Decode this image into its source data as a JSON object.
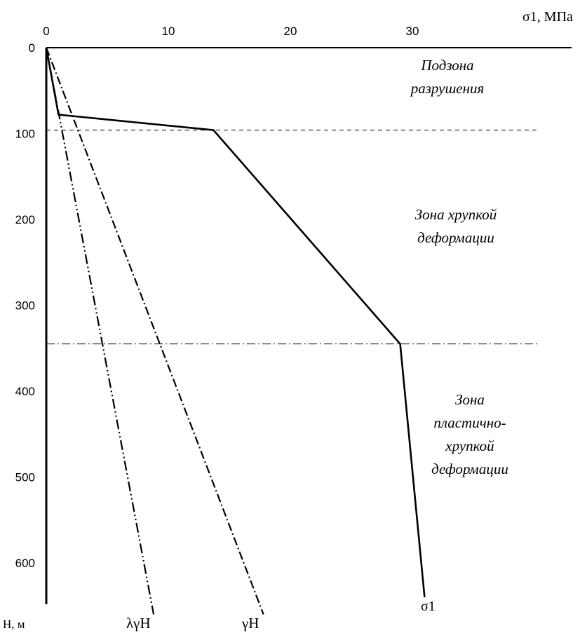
{
  "chart_data": {
    "type": "line",
    "title": "",
    "xlabel": "σ1, МПа",
    "ylabel": "Н, м",
    "x_ticks": [
      "0",
      "10",
      "20",
      "30"
    ],
    "y_ticks": [
      "0",
      "100",
      "200",
      "300",
      "400",
      "500",
      "600"
    ],
    "xlim": [
      0,
      40
    ],
    "ylim": [
      0,
      660
    ],
    "y_inverted": true,
    "series": [
      {
        "name": "σ1",
        "style": "solid",
        "points": [
          [
            0,
            0
          ],
          [
            1,
            78
          ],
          [
            13.7,
            96
          ],
          [
            29,
            345
          ],
          [
            31,
            640
          ]
        ]
      },
      {
        "name": "λγH",
        "style": "dash-dot-dot",
        "points": [
          [
            0,
            0
          ],
          [
            8.8,
            660
          ]
        ]
      },
      {
        "name": "γH",
        "style": "dash-dot",
        "points": [
          [
            0,
            0
          ],
          [
            17.8,
            660
          ]
        ]
      }
    ],
    "boundaries": [
      {
        "depth": 96,
        "style": "dashed"
      },
      {
        "depth": 345,
        "style": "dash-dot"
      }
    ],
    "zones": [
      {
        "lines": [
          "Подзона",
          "разрушения"
        ]
      },
      {
        "lines": [
          "Зона хрупкой",
          "деформации"
        ]
      },
      {
        "lines": [
          "Зона",
          "пластично-",
          "хрупкой",
          "деформации"
        ]
      }
    ]
  }
}
